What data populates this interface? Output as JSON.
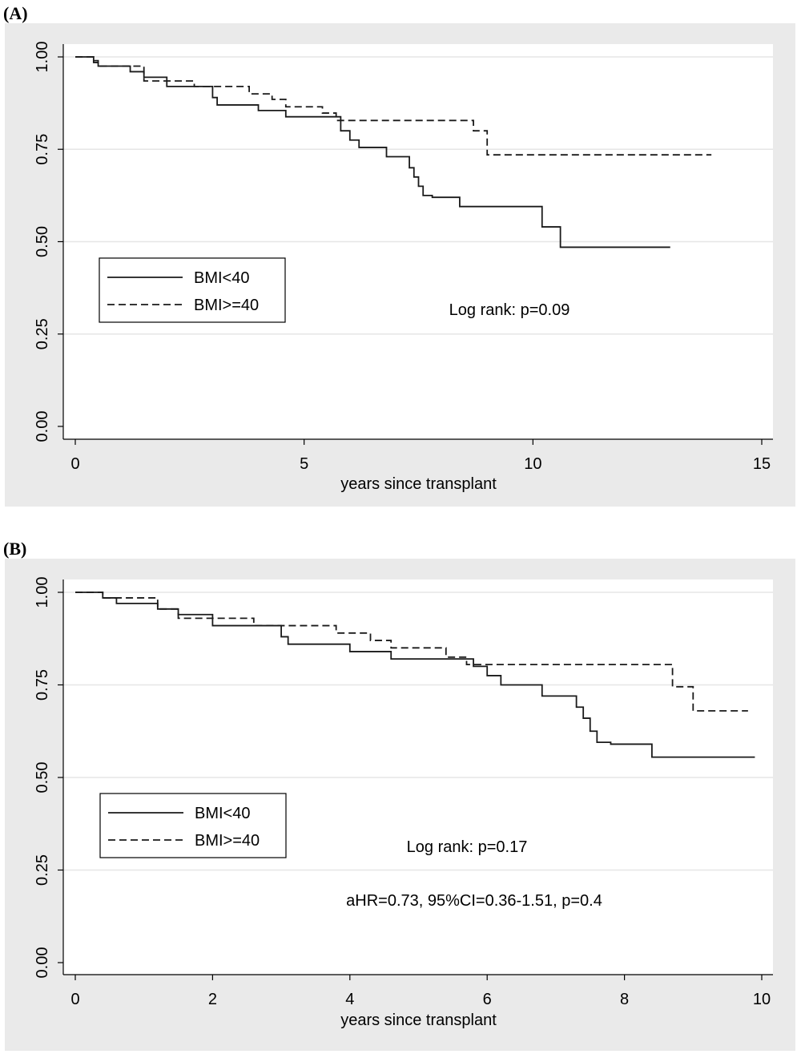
{
  "chart_data": [
    {
      "panel_label": "(A)",
      "type": "line",
      "step": true,
      "xlabel": "years since transplant",
      "ylabel": "",
      "xlim": [
        0,
        15
      ],
      "ylim": [
        0,
        1
      ],
      "x_ticks": [
        "0",
        "5",
        "10",
        "15"
      ],
      "y_ticks": [
        "0.00",
        "0.25",
        "0.50",
        "0.75",
        "1.00"
      ],
      "grid": "horizontal",
      "legend_position": "middle-left",
      "annotations": [
        "Log rank: p=0.09"
      ],
      "series": [
        {
          "name": "BMI<40",
          "style": "solid",
          "x": [
            0,
            0.4,
            0.5,
            1.2,
            1.5,
            2.0,
            3.0,
            3.1,
            4.0,
            4.6,
            5.6,
            5.8,
            6.0,
            6.2,
            6.8,
            7.3,
            7.4,
            7.5,
            7.6,
            7.8,
            8.4,
            10.2,
            10.6,
            13.0
          ],
          "y": [
            1.0,
            0.99,
            0.975,
            0.96,
            0.945,
            0.92,
            0.89,
            0.87,
            0.855,
            0.838,
            0.838,
            0.8,
            0.775,
            0.755,
            0.73,
            0.7,
            0.675,
            0.65,
            0.625,
            0.62,
            0.595,
            0.54,
            0.485,
            0.485
          ]
        },
        {
          "name": "BMI>=40",
          "style": "dashed",
          "x": [
            0,
            0.4,
            0.5,
            1.5,
            2.6,
            3.8,
            4.3,
            4.6,
            5.4,
            5.7,
            8.7,
            9.0,
            13.9
          ],
          "y": [
            1.0,
            0.985,
            0.975,
            0.935,
            0.92,
            0.9,
            0.885,
            0.865,
            0.848,
            0.828,
            0.8,
            0.735,
            0.735
          ]
        }
      ]
    },
    {
      "panel_label": "(B)",
      "type": "line",
      "step": true,
      "xlabel": "years since transplant",
      "ylabel": "",
      "xlim": [
        0,
        10
      ],
      "ylim": [
        0,
        1
      ],
      "x_ticks": [
        "0",
        "2",
        "4",
        "6",
        "8",
        "10"
      ],
      "y_ticks": [
        "0.00",
        "0.25",
        "0.50",
        "0.75",
        "1.00"
      ],
      "grid": "horizontal",
      "legend_position": "middle-left",
      "annotations": [
        "Log rank: p=0.17",
        "aHR=0.73, 95%CI=0.36-1.51, p=0.4"
      ],
      "series": [
        {
          "name": "BMI<40",
          "style": "solid",
          "x": [
            0,
            0.4,
            0.6,
            1.2,
            1.5,
            2.0,
            3.0,
            3.1,
            4.0,
            4.6,
            5.8,
            6.0,
            6.2,
            6.8,
            7.3,
            7.4,
            7.5,
            7.6,
            7.8,
            8.4,
            9.9
          ],
          "y": [
            1.0,
            0.985,
            0.97,
            0.955,
            0.94,
            0.91,
            0.88,
            0.86,
            0.84,
            0.82,
            0.8,
            0.775,
            0.75,
            0.72,
            0.69,
            0.66,
            0.625,
            0.595,
            0.59,
            0.555,
            0.555
          ]
        },
        {
          "name": "BMI>=40",
          "style": "dashed",
          "x": [
            0,
            0.4,
            1.2,
            1.5,
            2.6,
            3.8,
            4.3,
            4.6,
            5.4,
            5.7,
            8.7,
            9.0,
            9.8
          ],
          "y": [
            1.0,
            0.985,
            0.955,
            0.93,
            0.91,
            0.89,
            0.87,
            0.85,
            0.825,
            0.805,
            0.745,
            0.68,
            0.68
          ]
        }
      ]
    }
  ]
}
